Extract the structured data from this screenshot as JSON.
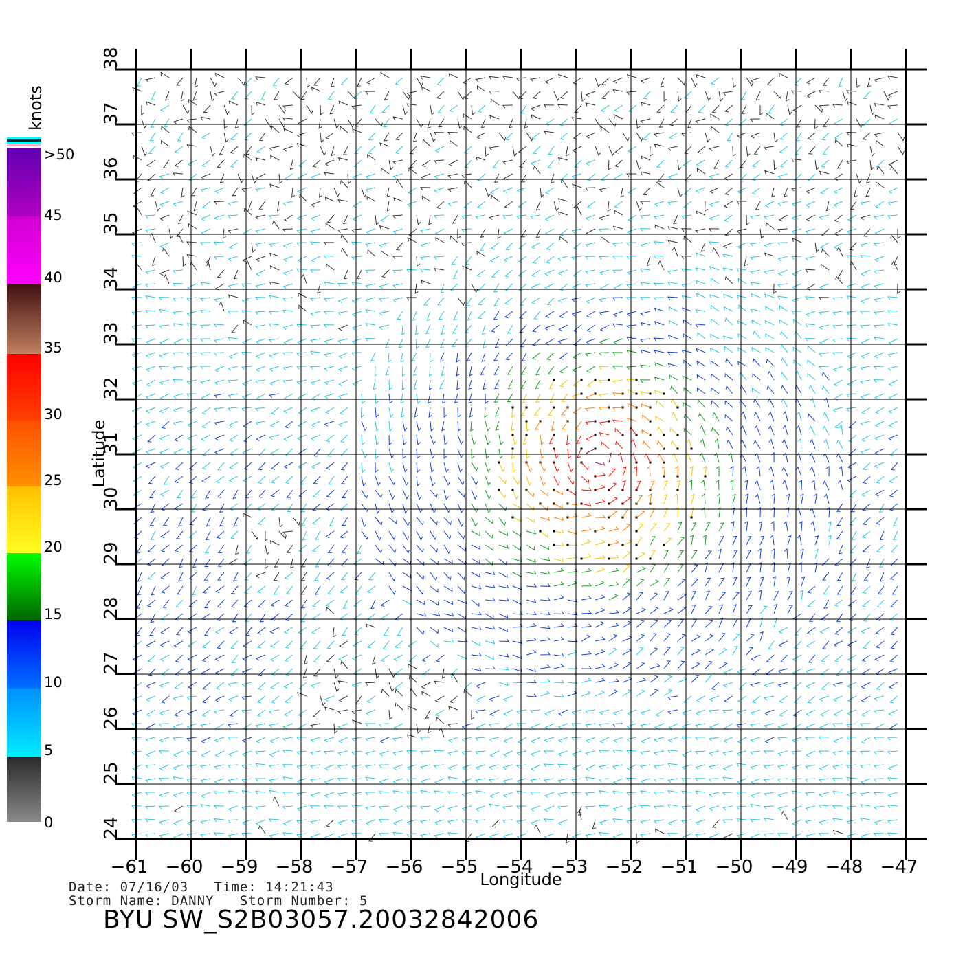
{
  "map": {
    "longitude_label": "Longitude",
    "latitude_label": "Latitude",
    "lon_range": [
      -61,
      -47
    ],
    "lat_range": [
      24,
      38
    ],
    "lon_ticks": [
      "-61",
      "-60",
      "-59",
      "-58",
      "-57",
      "-56",
      "-55",
      "-54",
      "-53",
      "-52",
      "-51",
      "-50",
      "-49",
      "-48",
      "-47"
    ],
    "lat_ticks": [
      "24",
      "25",
      "26",
      "27",
      "28",
      "29",
      "30",
      "31",
      "32",
      "33",
      "34",
      "35",
      "36",
      "37",
      "38"
    ],
    "grid": true,
    "field": "wind vector barbs (knots)"
  },
  "colorbar": {
    "unit_label": "knots",
    "top_label": ">50",
    "labels": [
      "45",
      "40",
      "35",
      "30",
      "25",
      "20",
      "15",
      "10",
      "5",
      "0"
    ],
    "colors": {
      "0-5": [
        "#8a8a8a",
        "#2a2a2a"
      ],
      "5-10": [
        "#00eaff",
        "#0090ff"
      ],
      "10-15": [
        "#0070ff",
        "#0000ee"
      ],
      "15-20": [
        "#006400",
        "#00ff00"
      ],
      "20-25": [
        "#ffff20",
        "#ffc000"
      ],
      "25-30": [
        "#ff9000",
        "#ff5000"
      ],
      "30-35": [
        "#ff4000",
        "#ff0000"
      ],
      "35-40": [
        "#c08060",
        "#401010"
      ],
      "40-45": [
        "#ff00ff",
        "#d000d0"
      ],
      "45-50": [
        "#b000c0",
        "#6000b0"
      ]
    }
  },
  "storm": {
    "date_label": "Date:",
    "date": "07/16/03",
    "time_label": "Time:",
    "time": "14:21:43",
    "name_label": "Storm Name:",
    "name": "DANNY",
    "number_label": "Storm Number:",
    "number": "5"
  },
  "product_id": "BYU SW_S2B03057.20032842006"
}
